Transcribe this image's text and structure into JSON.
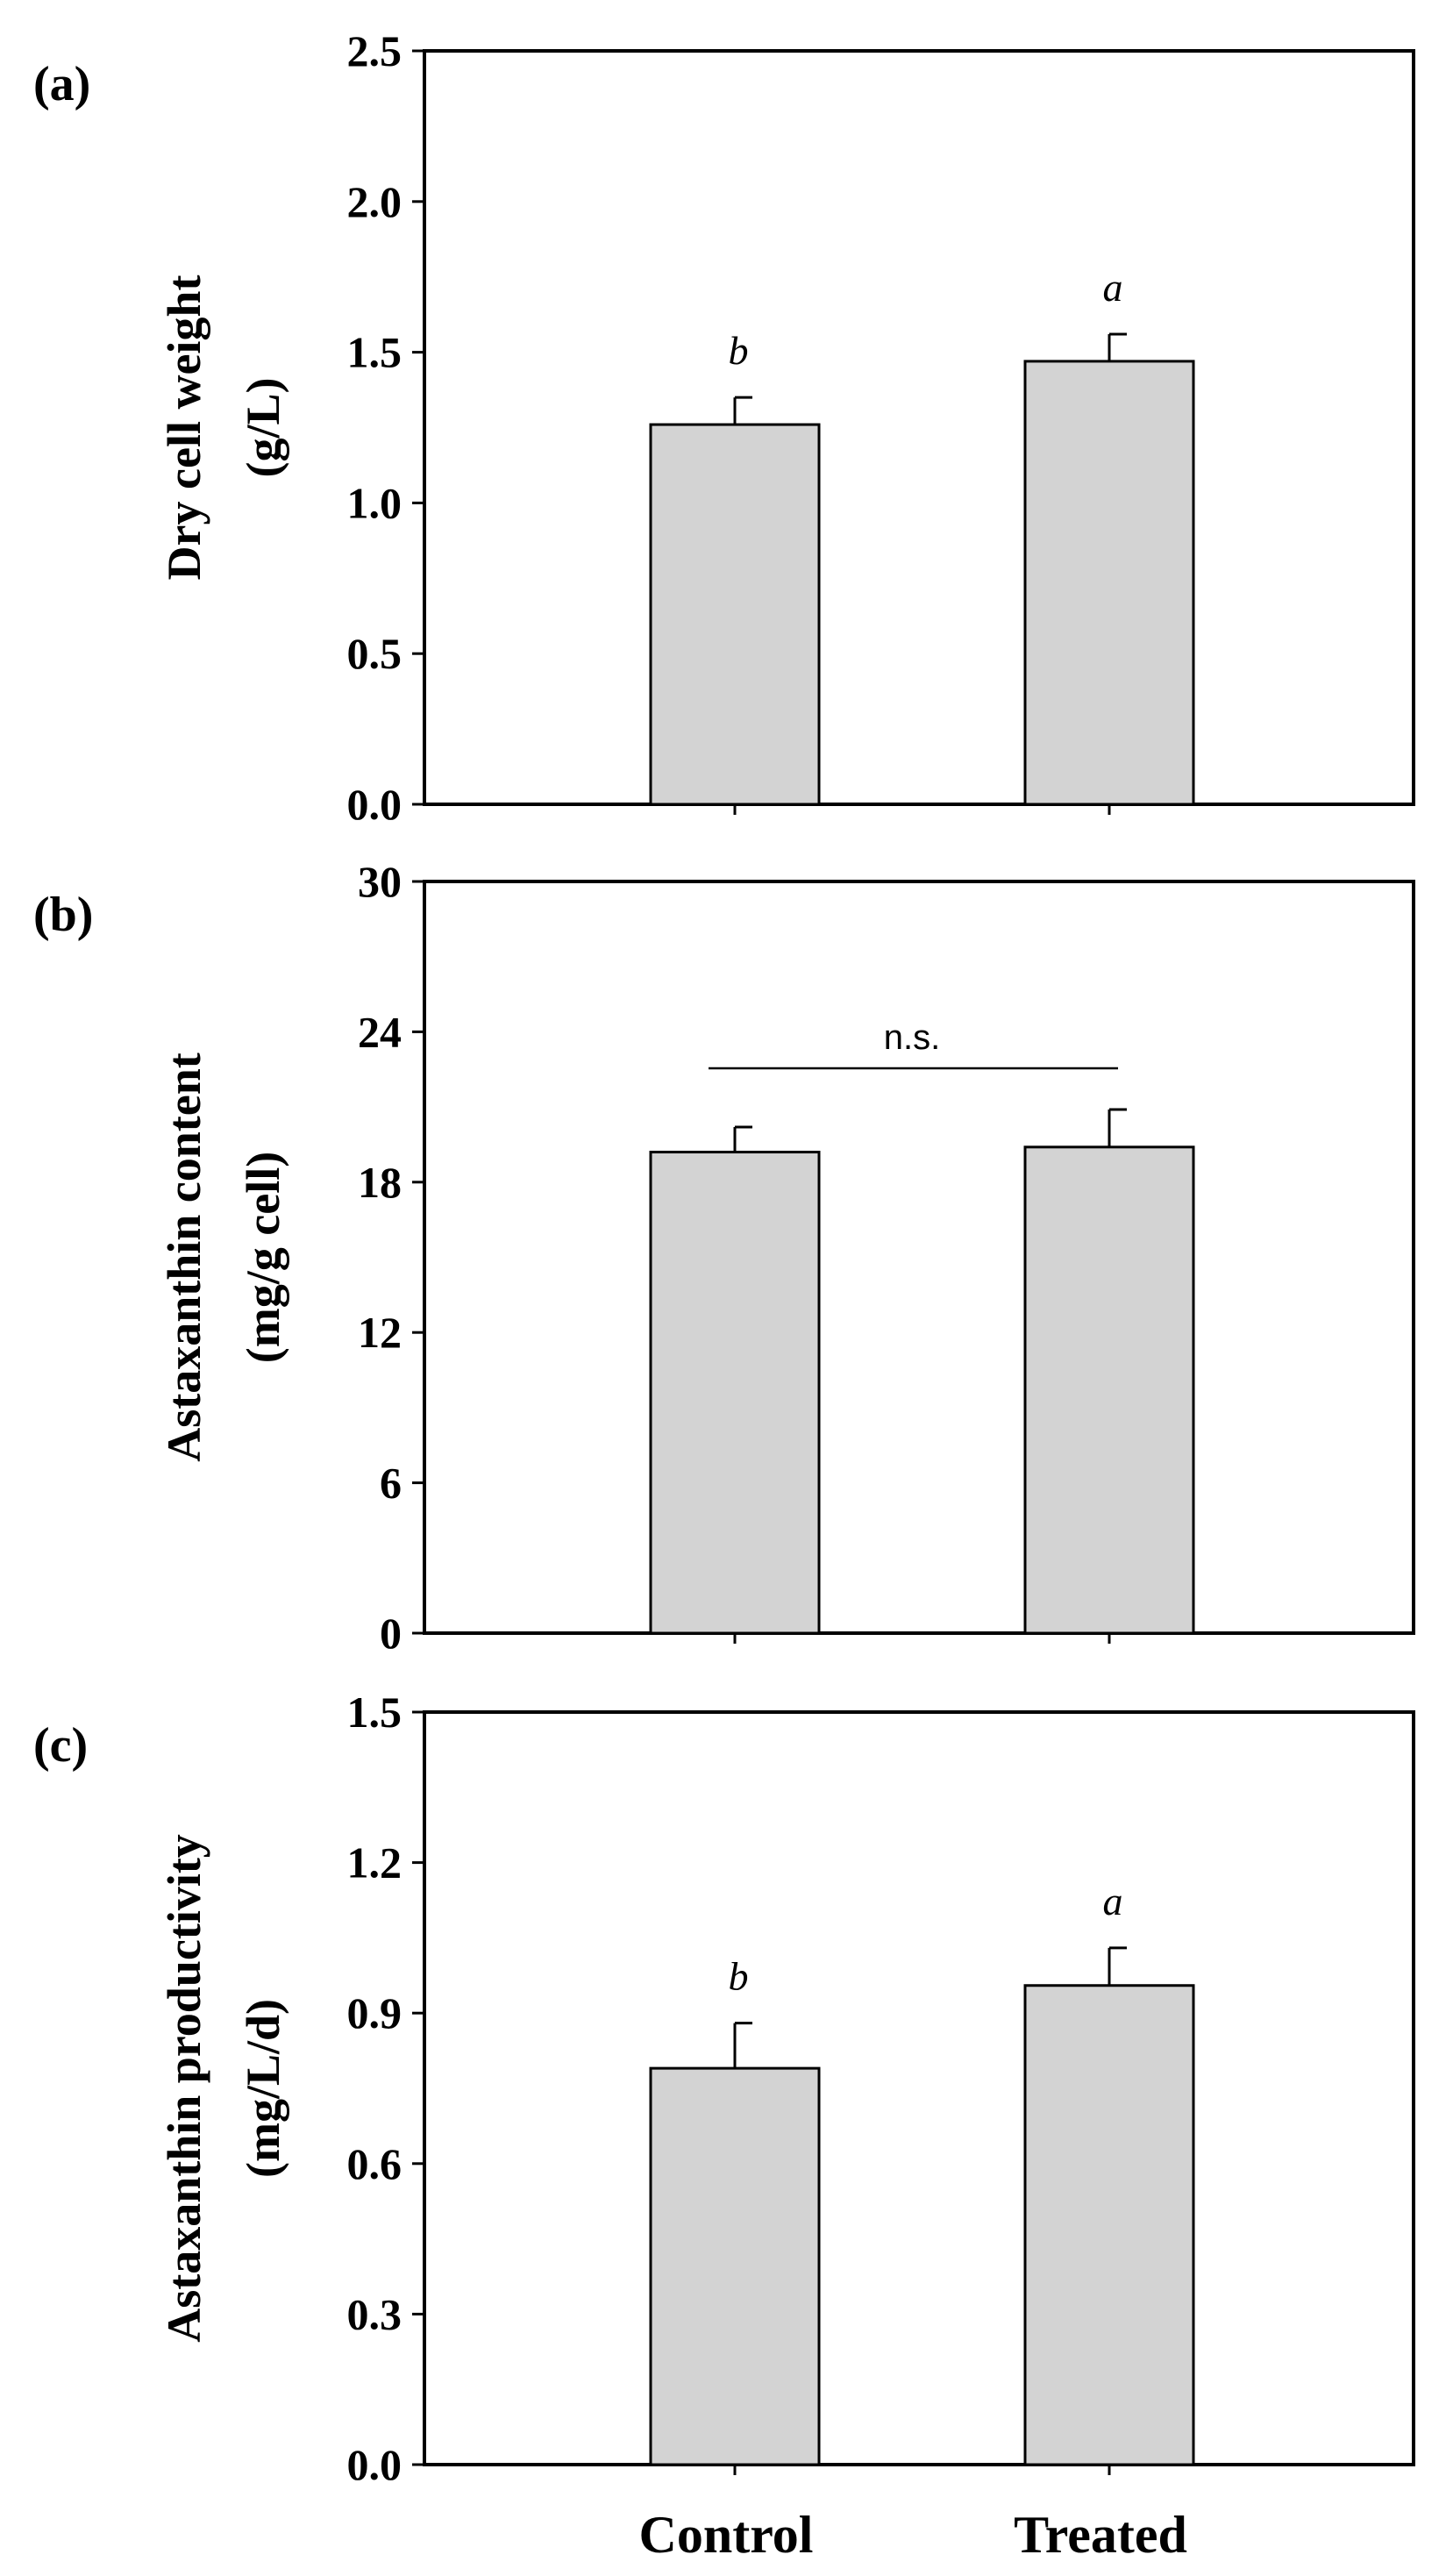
{
  "chart_data": [
    {
      "type": "bar",
      "panel_label": "(a)",
      "categories": [
        "Control",
        "Treated"
      ],
      "values": [
        1.26,
        1.47
      ],
      "errors": [
        0.09,
        0.09
      ],
      "significance": [
        "b",
        "a"
      ],
      "ylabel_line1": "Dry cell weight",
      "ylabel_line2": "(g/L)",
      "ylim": [
        0,
        2.5
      ],
      "yticks": [
        "0.0",
        "0.5",
        "1.0",
        "1.5",
        "2.0",
        "2.5"
      ],
      "bar_color": "#d3d3d3"
    },
    {
      "type": "bar",
      "panel_label": "(b)",
      "categories": [
        "Control",
        "Treated"
      ],
      "values": [
        19.2,
        19.4
      ],
      "errors": [
        1.0,
        1.5
      ],
      "comparison_label": "n.s.",
      "ylabel_line1": "Astaxanthin content",
      "ylabel_line2": "(mg/g cell)",
      "ylim": [
        0,
        30
      ],
      "yticks": [
        "0",
        "6",
        "12",
        "18",
        "24",
        "30"
      ],
      "bar_color": "#d3d3d3"
    },
    {
      "type": "bar",
      "panel_label": "(c)",
      "categories": [
        "Control",
        "Treated"
      ],
      "values": [
        0.79,
        0.955
      ],
      "errors": [
        0.09,
        0.075
      ],
      "significance": [
        "b",
        "a"
      ],
      "ylabel_line1": "Astaxanthin productivity",
      "ylabel_line2": "(mg/L/d)",
      "ylim": [
        0,
        1.5
      ],
      "yticks": [
        "0.0",
        "0.3",
        "0.6",
        "0.9",
        "1.2",
        "1.5"
      ],
      "bar_color": "#d3d3d3"
    }
  ],
  "x_categories": [
    "Control",
    "Treated"
  ]
}
